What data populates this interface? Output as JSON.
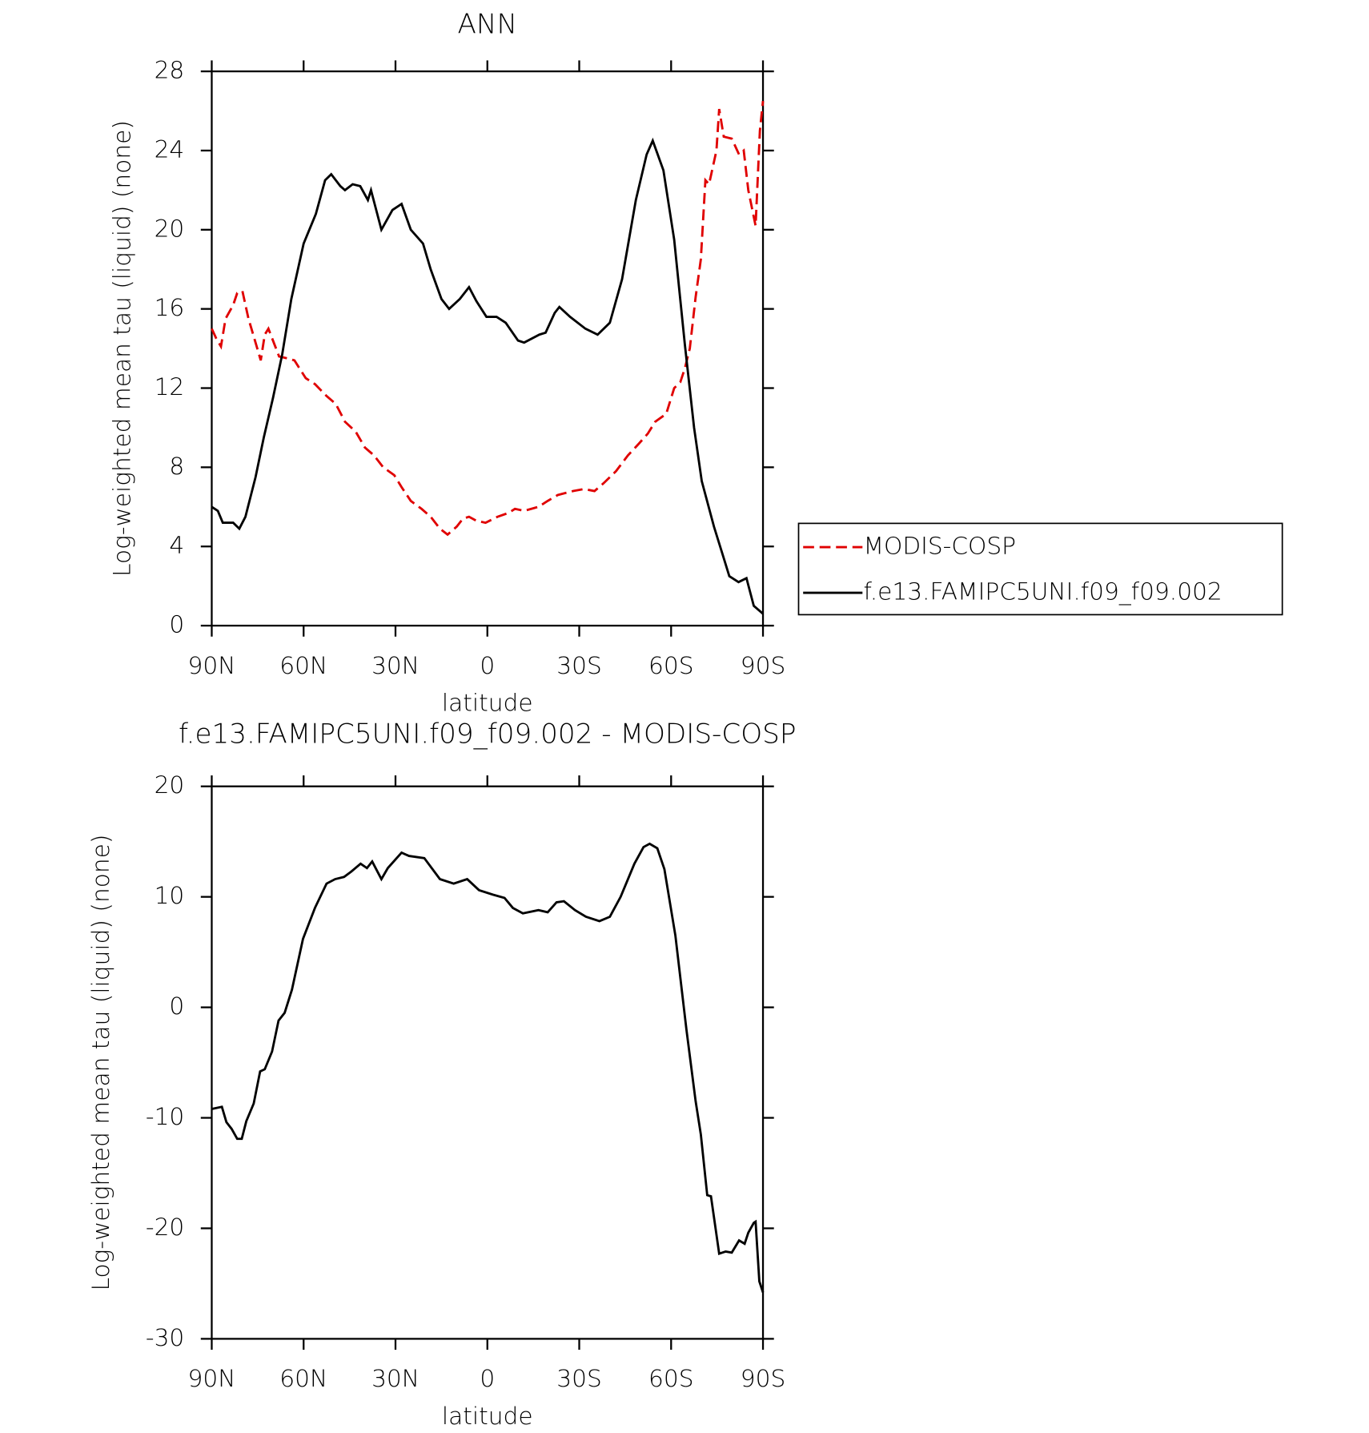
{
  "chart_data": [
    {
      "type": "line",
      "title": "ANN",
      "x_label": "latitude",
      "y_label": "Log-weighted mean tau (liquid) (none)",
      "xlim": [
        90,
        -90
      ],
      "xticks": [
        {
          "value": 90,
          "label": "90N"
        },
        {
          "value": 60,
          "label": "60N"
        },
        {
          "value": 30,
          "label": "30N"
        },
        0,
        {
          "value": -30,
          "label": "30S"
        },
        {
          "value": -60,
          "label": "60S"
        },
        {
          "value": -90,
          "label": "90S"
        }
      ],
      "ylim": [
        0,
        28
      ],
      "yticks": [
        0,
        4,
        8,
        12,
        16,
        20,
        24,
        28
      ],
      "legend": "right",
      "series": [
        {
          "name": "MODIS-COSP",
          "color": "#e00000",
          "dash": true,
          "x": [
            90,
            88.5,
            87,
            85.5,
            83,
            81.7,
            80,
            78,
            75.7,
            74,
            72.7,
            71.5,
            68,
            65.3,
            63,
            59.3,
            56.3,
            52.5,
            49.5,
            46.5,
            43,
            40,
            37,
            34,
            30.4,
            28,
            25,
            21.5,
            18.5,
            15.5,
            13,
            10,
            8,
            6,
            3.6,
            0.6,
            -3.3,
            -7,
            -9,
            -12,
            -16.7,
            -19.7,
            -23,
            -28,
            -31.6,
            -35,
            -38,
            -42,
            -45.9,
            -49.5,
            -52.4,
            -54.8,
            -58.4,
            -61,
            -63,
            -64.5,
            -66.1,
            -68,
            -69.7,
            -71.2,
            -72.4,
            -74.8,
            -75.7,
            -77.2,
            -79.8,
            -82.2,
            -83.7,
            -85.2,
            -87.6,
            -89,
            -90
          ],
          "values": [
            15.0,
            14.5,
            14.1,
            15.5,
            16.2,
            16.8,
            16.9,
            15.5,
            14.3,
            13.4,
            14.7,
            15.0,
            13.6,
            13.5,
            13.4,
            12.5,
            12.2,
            11.6,
            11.2,
            10.3,
            9.8,
            9.0,
            8.6,
            8.0,
            7.6,
            7.0,
            6.3,
            5.9,
            5.5,
            4.9,
            4.6,
            5.0,
            5.4,
            5.5,
            5.3,
            5.2,
            5.5,
            5.7,
            5.9,
            5.8,
            6.0,
            6.3,
            6.6,
            6.8,
            6.9,
            6.8,
            7.2,
            7.8,
            8.6,
            9.2,
            9.7,
            10.3,
            10.7,
            12.0,
            12.3,
            13.0,
            14.0,
            16.6,
            18.5,
            22.5,
            22.3,
            24.0,
            26.1,
            24.7,
            24.6,
            23.8,
            24.0,
            22.0,
            20.2,
            25.0,
            26.5
          ]
        },
        {
          "name": "f.e13.FAMIPC5UNI.f09_f09.002",
          "color": "#000000",
          "dash": false,
          "x": [
            90,
            88,
            86.4,
            83,
            81,
            79,
            75.7,
            73,
            70,
            67,
            64,
            60,
            56,
            53,
            51,
            48,
            46.5,
            44,
            41.5,
            39,
            38,
            34.6,
            31,
            28,
            25,
            21,
            18.5,
            15,
            12.5,
            9,
            6,
            3.6,
            0.3,
            -3,
            -6,
            -10,
            -12,
            -17,
            -19,
            -22,
            -23.5,
            -27,
            -32,
            -36,
            -40,
            -44,
            -48.5,
            -52,
            -54,
            -57.5,
            -61,
            -64.5,
            -67.5,
            -70,
            -74,
            -77,
            -79,
            -82,
            -84.6,
            -87,
            -90
          ],
          "values": [
            6.0,
            5.8,
            5.2,
            5.2,
            4.9,
            5.5,
            7.5,
            9.5,
            11.5,
            13.7,
            16.5,
            19.3,
            20.8,
            22.5,
            22.8,
            22.2,
            22.0,
            22.3,
            22.2,
            21.5,
            22.0,
            20.0,
            21.0,
            21.3,
            20.0,
            19.3,
            18.0,
            16.5,
            16.0,
            16.5,
            17.1,
            16.4,
            15.6,
            15.6,
            15.3,
            14.4,
            14.3,
            14.7,
            14.8,
            15.8,
            16.1,
            15.6,
            15.0,
            14.7,
            15.3,
            17.5,
            21.5,
            23.8,
            24.5,
            23.0,
            19.5,
            14.2,
            10.0,
            7.3,
            5.0,
            3.5,
            2.5,
            2.2,
            2.4,
            1.0,
            0.6
          ]
        }
      ]
    },
    {
      "type": "line",
      "title": "f.e13.FAMIPC5UNI.f09_f09.002 - MODIS-COSP",
      "x_label": "latitude",
      "y_label": "Log-weighted mean tau (liquid) (none)",
      "xlim": [
        90,
        -90
      ],
      "xticks": [
        {
          "value": 90,
          "label": "90N"
        },
        {
          "value": 60,
          "label": "60N"
        },
        {
          "value": 30,
          "label": "30N"
        },
        0,
        {
          "value": -30,
          "label": "30S"
        },
        {
          "value": -60,
          "label": "60S"
        },
        {
          "value": -90,
          "label": "90S"
        }
      ],
      "ylim": [
        -30,
        20
      ],
      "yticks": [
        -30,
        -20,
        -10,
        0,
        10,
        20
      ],
      "series": [
        {
          "color": "#000000",
          "dash": false,
          "x": [
            90,
            86.7,
            85.2,
            83.5,
            81.7,
            80.2,
            78.7,
            76.3,
            74.2,
            72.7,
            70.3,
            68.2,
            66.2,
            63.8,
            60.2,
            56.3,
            52.5,
            49.7,
            46.8,
            44.4,
            41.4,
            39.3,
            37.6,
            34.6,
            32.5,
            28,
            25.6,
            20.6,
            15.5,
            11,
            6.6,
            2.7,
            -1.8,
            -5.6,
            -8.3,
            -11.6,
            -16.7,
            -19.7,
            -22.6,
            -25,
            -28.6,
            -32.2,
            -36.6,
            -40,
            -43.5,
            -48,
            -51,
            -53,
            -55.5,
            -57.8,
            -61.4,
            -65,
            -68,
            -69.7,
            -71.8,
            -73,
            -75.7,
            -77.8,
            -79.8,
            -82.2,
            -84,
            -85.2,
            -87,
            -87.6,
            -88.8,
            -90
          ],
          "values": [
            -9.2,
            -9.0,
            -10.4,
            -11.0,
            -11.9,
            -11.9,
            -10.3,
            -8.7,
            -5.8,
            -5.6,
            -4.0,
            -1.2,
            -0.5,
            1.6,
            6.2,
            9.0,
            11.2,
            11.6,
            11.8,
            12.3,
            13.0,
            12.6,
            13.2,
            11.6,
            12.6,
            14.0,
            13.7,
            13.5,
            11.6,
            11.2,
            11.6,
            10.6,
            10.2,
            9.9,
            9.0,
            8.5,
            8.8,
            8.6,
            9.5,
            9.6,
            8.8,
            8.2,
            7.8,
            8.2,
            10.0,
            13.0,
            14.5,
            14.8,
            14.4,
            12.5,
            6.5,
            -2.0,
            -8.5,
            -11.5,
            -17.0,
            -17.1,
            -22.3,
            -22.1,
            -22.2,
            -21.1,
            -21.4,
            -20.4,
            -19.5,
            -19.4,
            -24.8,
            -25.8
          ]
        }
      ]
    }
  ]
}
